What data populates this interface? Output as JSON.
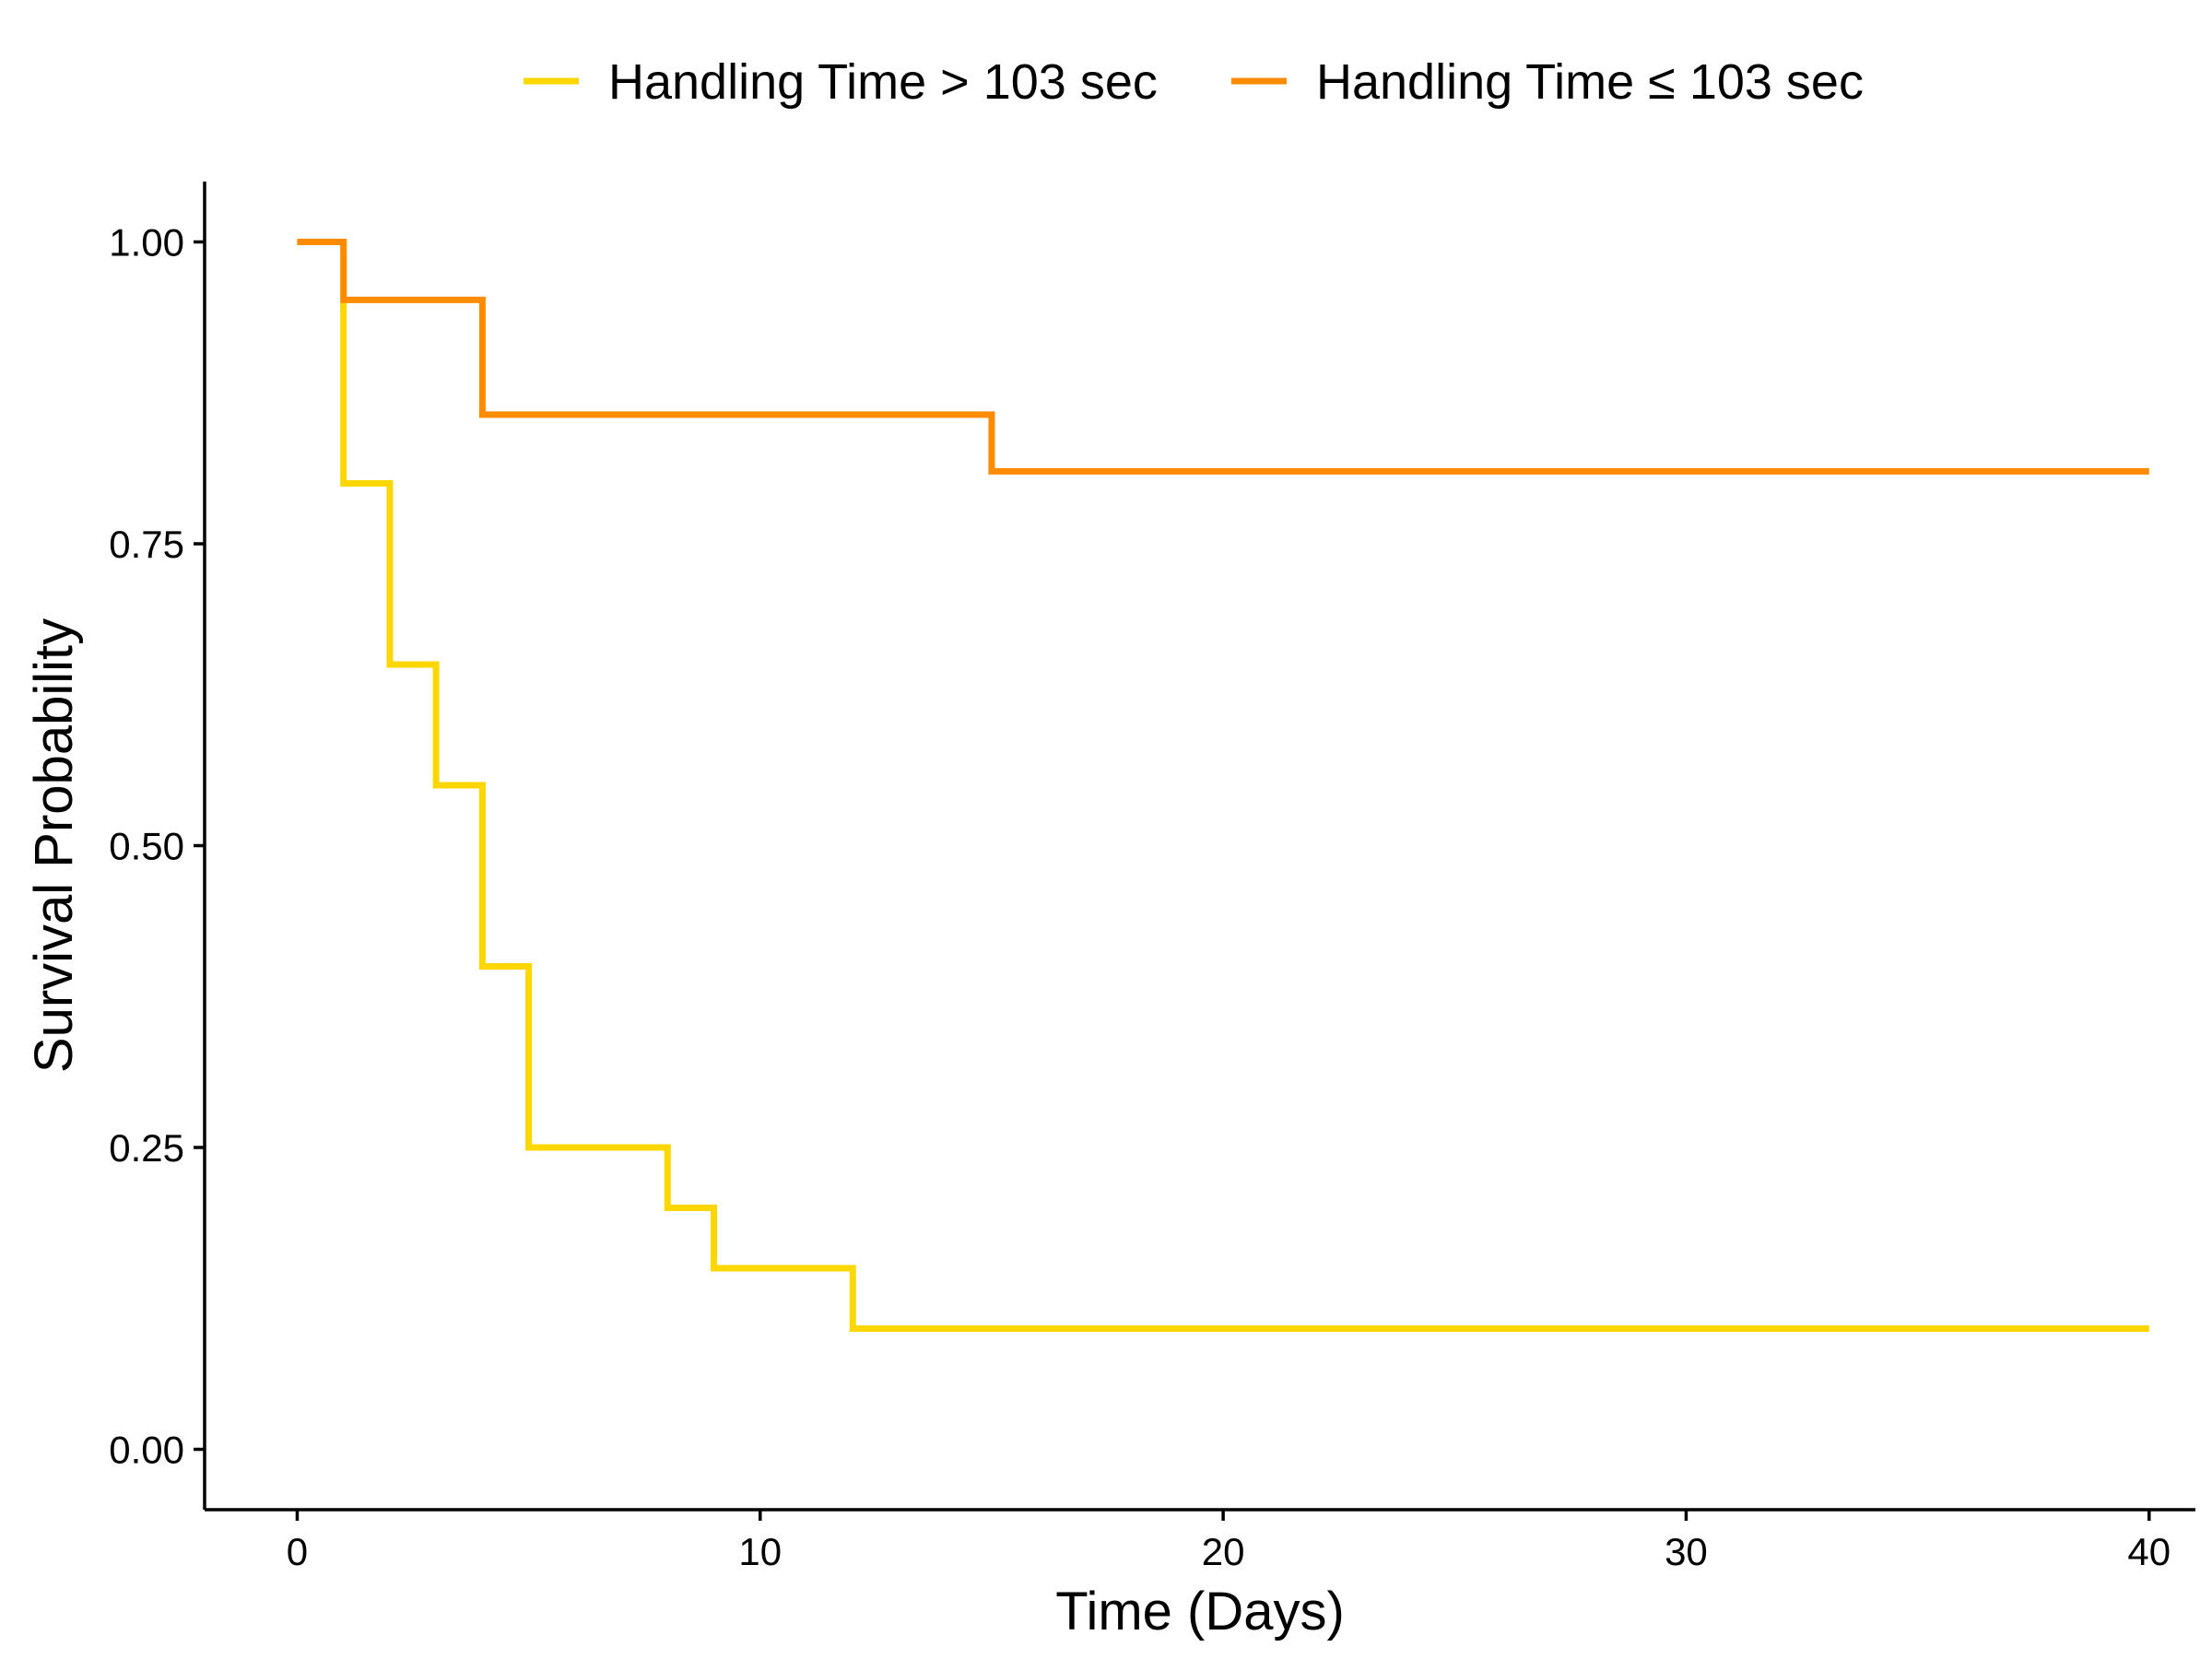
{
  "chart_data": {
    "type": "line",
    "step": true,
    "title": "",
    "xlabel": "Time (Days)",
    "ylabel": "Survival Probability",
    "xlim": [
      -2,
      41
    ],
    "ylim": [
      -0.05,
      1.05
    ],
    "xticks": [
      0,
      10,
      20,
      30,
      40
    ],
    "xtick_labels": [
      "0",
      "10",
      "20",
      "30",
      "40"
    ],
    "yticks": [
      0,
      0.25,
      0.5,
      0.75,
      1
    ],
    "ytick_labels": [
      "0.00",
      "0.25",
      "0.50",
      "0.75",
      "1.00"
    ],
    "grid": false,
    "legend": {
      "position": "top"
    },
    "series": [
      {
        "name": "Handling Time > 103 sec",
        "color": "#FFD700",
        "x": [
          0,
          1,
          2,
          3,
          4,
          5,
          8,
          9,
          12,
          40
        ],
        "y": [
          1.0,
          0.8,
          0.65,
          0.55,
          0.4,
          0.25,
          0.2,
          0.15,
          0.1,
          0.1
        ]
      },
      {
        "name": "Handling Time ≤ 103 sec",
        "color": "#FF8C00",
        "x": [
          0,
          1,
          4,
          15,
          40
        ],
        "y": [
          1.0,
          0.952,
          0.857,
          0.81,
          0.81
        ]
      }
    ]
  }
}
